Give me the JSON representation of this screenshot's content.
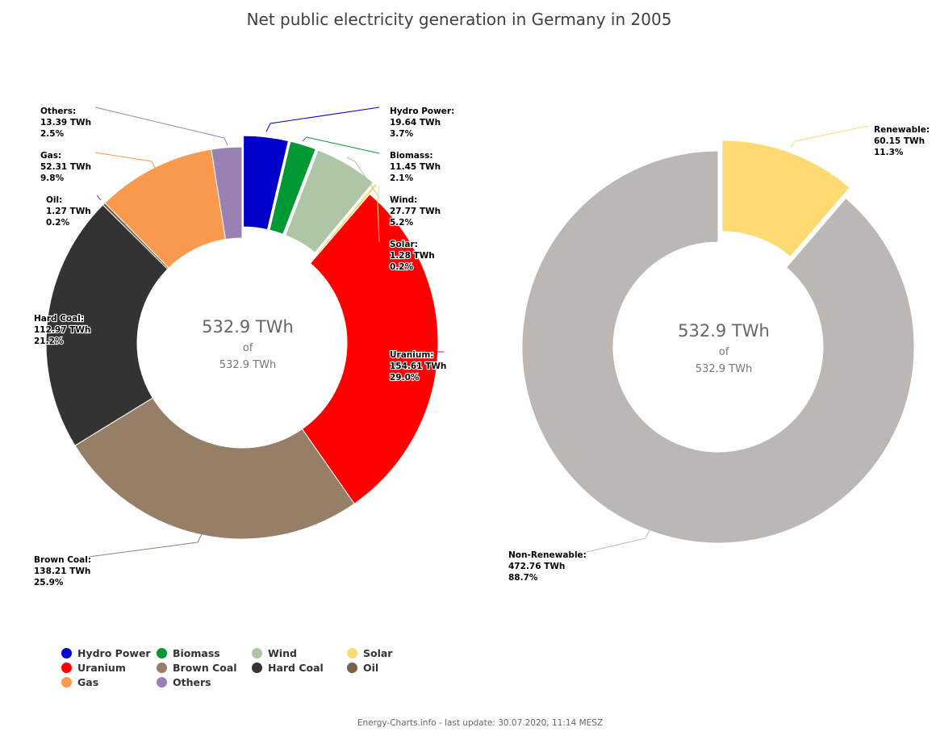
{
  "title": "Net public electricity generation in Germany in 2005",
  "footer": "Energy-Charts.info - last update: 30.07.2020, 11:14 MESZ",
  "chart_data": [
    {
      "type": "pie",
      "variant": "donut",
      "title": "Net public electricity generation in Germany in 2005",
      "center_main": "532.9 TWh",
      "center_of": "of",
      "center_total": "532.9 TWh",
      "unit": "TWh",
      "slices": [
        {
          "name": "Hydro Power",
          "value": 19.64,
          "value_label": "19.64 TWh",
          "percent_label": "3.7%",
          "color": "#0000c8"
        },
        {
          "name": "Biomass",
          "value": 11.45,
          "value_label": "11.45 TWh",
          "percent_label": "2.1%",
          "color": "#009933"
        },
        {
          "name": "Wind",
          "value": 27.77,
          "value_label": "27.77 TWh",
          "percent_label": "5.2%",
          "color": "#afc6a6"
        },
        {
          "name": "Solar",
          "value": 1.28,
          "value_label": "1.28 TWh",
          "percent_label": "0.2%",
          "color": "#ffd972"
        },
        {
          "name": "Uranium",
          "value": 154.61,
          "value_label": "154.61 TWh",
          "percent_label": "29.0%",
          "color": "#ff0000"
        },
        {
          "name": "Brown Coal",
          "value": 138.21,
          "value_label": "138.21 TWh",
          "percent_label": "25.9%",
          "color": "#977e66"
        },
        {
          "name": "Hard Coal",
          "value": 112.97,
          "value_label": "112.97 TWh",
          "percent_label": "21.2%",
          "color": "#333333"
        },
        {
          "name": "Oil",
          "value": 1.27,
          "value_label": "1.27 TWh",
          "percent_label": "0.2%",
          "color": "#7a6148"
        },
        {
          "name": "Gas",
          "value": 52.31,
          "value_label": "52.31 TWh",
          "percent_label": "9.8%",
          "color": "#f99a4e"
        },
        {
          "name": "Others",
          "value": 13.39,
          "value_label": "13.39 TWh",
          "percent_label": "2.5%",
          "color": "#9a81b4"
        }
      ]
    },
    {
      "type": "pie",
      "variant": "donut",
      "center_main": "532.9 TWh",
      "center_of": "of",
      "center_total": "532.9 TWh",
      "unit": "TWh",
      "slices": [
        {
          "name": "Renewable",
          "value": 60.15,
          "value_label": "60.15 TWh",
          "percent_label": "11.3%",
          "color": "#ffd972"
        },
        {
          "name": "Non-Renewable",
          "value": 472.76,
          "value_label": "472.76 TWh",
          "percent_label": "88.7%",
          "color": "#bbb7b4"
        }
      ]
    }
  ],
  "legend": [
    {
      "label": "Hydro Power",
      "color": "#0000c8"
    },
    {
      "label": "Biomass",
      "color": "#009933"
    },
    {
      "label": "Wind",
      "color": "#afc6a6"
    },
    {
      "label": "Solar",
      "color": "#ffd972"
    },
    {
      "label": "Uranium",
      "color": "#ff0000"
    },
    {
      "label": "Brown Coal",
      "color": "#977e66"
    },
    {
      "label": "Hard Coal",
      "color": "#333333"
    },
    {
      "label": "Oil",
      "color": "#7a6148"
    },
    {
      "label": "Gas",
      "color": "#f99a4e"
    },
    {
      "label": "Others",
      "color": "#9a81b4"
    }
  ]
}
